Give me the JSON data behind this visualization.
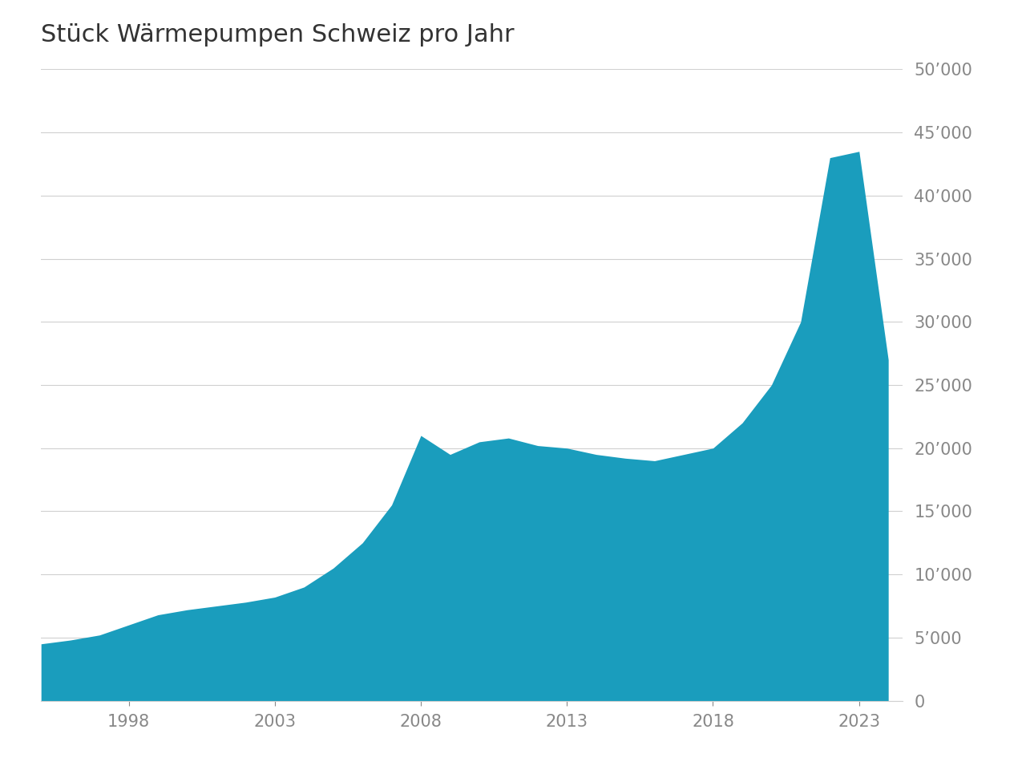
{
  "title": "Stück Wärmepumpen Schweiz pro Jahr",
  "years": [
    1995,
    1996,
    1997,
    1998,
    1999,
    2000,
    2001,
    2002,
    2003,
    2004,
    2005,
    2006,
    2007,
    2008,
    2009,
    2010,
    2011,
    2012,
    2013,
    2014,
    2015,
    2016,
    2017,
    2018,
    2019,
    2020,
    2021,
    2022,
    2023,
    2024
  ],
  "values": [
    4500,
    4800,
    5200,
    6000,
    6800,
    7200,
    7500,
    7800,
    8200,
    9000,
    10500,
    12500,
    15500,
    21000,
    19500,
    20500,
    20800,
    20200,
    20000,
    19500,
    19200,
    19000,
    19500,
    20000,
    22000,
    25000,
    30000,
    43000,
    43500,
    27000
  ],
  "fill_color": "#1a9dbd",
  "line_color": "#1a9dbd",
  "background_color": "#ffffff",
  "title_fontsize": 22,
  "tick_label_color": "#888888",
  "grid_color": "#d0d0d0",
  "ylim": [
    0,
    50000
  ],
  "ytick_values": [
    0,
    5000,
    10000,
    15000,
    20000,
    25000,
    30000,
    35000,
    40000,
    45000,
    50000
  ],
  "xtick_values": [
    1998,
    2003,
    2008,
    2013,
    2018,
    2023
  ],
  "title_color": "#333333",
  "xlim_left": 1995,
  "xlim_right": 2024.5
}
